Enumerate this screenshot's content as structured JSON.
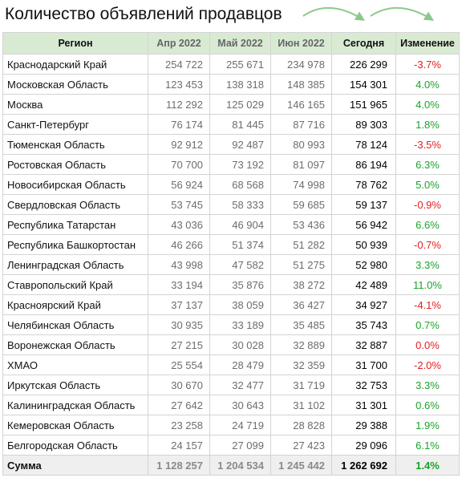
{
  "title": "Количество объявлений продавцов",
  "colors": {
    "header_bg": "#d9ead3",
    "positive": "#1aa32a",
    "negative": "#e02020",
    "arrow": "#8cc98c"
  },
  "icons": [
    "curved-arrow-icon",
    "curved-arrow-icon"
  ],
  "chart_data": {
    "type": "table",
    "headers": [
      "Регион",
      "Апр 2022",
      "Май 2022",
      "Июн 2022",
      "Сегодня",
      "Изменение"
    ],
    "rows": [
      {
        "region": "Краснодарский Край",
        "apr": "254 722",
        "may": "255 671",
        "jun": "234 978",
        "today": "226 299",
        "change": "-3.7%",
        "sign": "neg"
      },
      {
        "region": "Московская Область",
        "apr": "123 453",
        "may": "138 318",
        "jun": "148 385",
        "today": "154 301",
        "change": "4.0%",
        "sign": "pos"
      },
      {
        "region": "Москва",
        "apr": "112 292",
        "may": "125 029",
        "jun": "146 165",
        "today": "151 965",
        "change": "4.0%",
        "sign": "pos"
      },
      {
        "region": "Санкт-Петербург",
        "apr": "76 174",
        "may": "81 445",
        "jun": "87 716",
        "today": "89 303",
        "change": "1.8%",
        "sign": "pos"
      },
      {
        "region": "Тюменская Область",
        "apr": "92 912",
        "may": "92 487",
        "jun": "80 993",
        "today": "78 124",
        "change": "-3.5%",
        "sign": "neg"
      },
      {
        "region": "Ростовская Область",
        "apr": "70 700",
        "may": "73 192",
        "jun": "81 097",
        "today": "86 194",
        "change": "6.3%",
        "sign": "pos"
      },
      {
        "region": "Новосибирская Область",
        "apr": "56 924",
        "may": "68 568",
        "jun": "74 998",
        "today": "78 762",
        "change": "5.0%",
        "sign": "pos"
      },
      {
        "region": "Свердловская Область",
        "apr": "53 745",
        "may": "58 333",
        "jun": "59 685",
        "today": "59 137",
        "change": "-0.9%",
        "sign": "neg"
      },
      {
        "region": "Республика Татарстан",
        "apr": "43 036",
        "may": "46 904",
        "jun": "53 436",
        "today": "56 942",
        "change": "6.6%",
        "sign": "pos"
      },
      {
        "region": "Республика Башкортостан",
        "apr": "46 266",
        "may": "51 374",
        "jun": "51 282",
        "today": "50 939",
        "change": "-0.7%",
        "sign": "neg"
      },
      {
        "region": "Ленинградская Область",
        "apr": "43 998",
        "may": "47 582",
        "jun": "51 275",
        "today": "52 980",
        "change": "3.3%",
        "sign": "pos"
      },
      {
        "region": "Ставропольский Край",
        "apr": "33 194",
        "may": "35 876",
        "jun": "38 272",
        "today": "42 489",
        "change": "11.0%",
        "sign": "pos"
      },
      {
        "region": "Красноярский Край",
        "apr": "37 137",
        "may": "38 059",
        "jun": "36 427",
        "today": "34 927",
        "change": "-4.1%",
        "sign": "neg"
      },
      {
        "region": "Челябинская Область",
        "apr": "30 935",
        "may": "33 189",
        "jun": "35 485",
        "today": "35 743",
        "change": "0.7%",
        "sign": "pos"
      },
      {
        "region": "Воронежская Область",
        "apr": "27 215",
        "may": "30 028",
        "jun": "32 889",
        "today": "32 887",
        "change": "0.0%",
        "sign": "zero"
      },
      {
        "region": "ХМАО",
        "apr": "25 554",
        "may": "28 479",
        "jun": "32 359",
        "today": "31 700",
        "change": "-2.0%",
        "sign": "neg"
      },
      {
        "region": "Иркутская Область",
        "apr": "30 670",
        "may": "32 477",
        "jun": "31 719",
        "today": "32 753",
        "change": "3.3%",
        "sign": "pos"
      },
      {
        "region": "Калининградская Область",
        "apr": "27 642",
        "may": "30 643",
        "jun": "31 102",
        "today": "31 301",
        "change": "0.6%",
        "sign": "pos"
      },
      {
        "region": "Кемеровская Область",
        "apr": "23 258",
        "may": "24 719",
        "jun": "28 828",
        "today": "29 388",
        "change": "1.9%",
        "sign": "pos"
      },
      {
        "region": "Белгородская Область",
        "apr": "24 157",
        "may": "27 099",
        "jun": "27 423",
        "today": "29 096",
        "change": "6.1%",
        "sign": "pos"
      }
    ],
    "total": {
      "label": "Сумма",
      "apr": "1 128 257",
      "may": "1 204 534",
      "jun": "1 245 442",
      "today": "1 262 692",
      "change": "1.4%",
      "sign": "pos"
    }
  }
}
